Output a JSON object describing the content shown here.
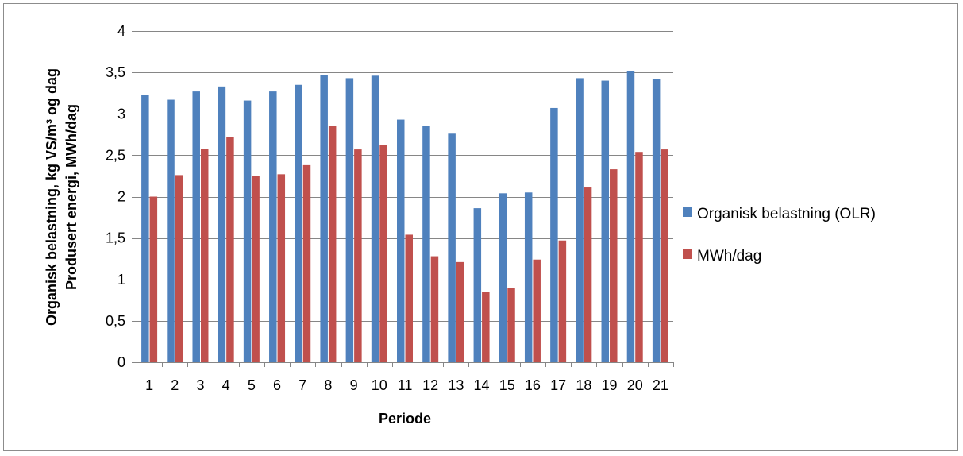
{
  "chart_data": {
    "type": "bar",
    "categories": [
      "1",
      "2",
      "3",
      "4",
      "5",
      "6",
      "7",
      "8",
      "9",
      "10",
      "11",
      "12",
      "13",
      "14",
      "15",
      "16",
      "17",
      "18",
      "19",
      "20",
      "21"
    ],
    "series": [
      {
        "name": "Organisk belastning (OLR)",
        "color": "#4F81BD",
        "values": [
          3.23,
          3.17,
          3.27,
          3.33,
          3.16,
          3.27,
          3.35,
          3.47,
          3.43,
          3.46,
          2.93,
          2.85,
          2.76,
          1.86,
          2.04,
          2.05,
          3.07,
          3.43,
          3.4,
          3.52,
          3.42
        ]
      },
      {
        "name": "MWh/dag",
        "color": "#C0504D",
        "values": [
          2.0,
          2.26,
          2.58,
          2.72,
          2.25,
          2.27,
          2.38,
          2.85,
          2.57,
          2.62,
          1.54,
          1.28,
          1.21,
          0.85,
          0.9,
          1.24,
          1.47,
          2.11,
          2.33,
          2.54,
          2.57
        ]
      }
    ],
    "ylim": [
      0,
      4
    ],
    "yticks": [
      0,
      0.5,
      1,
      1.5,
      2,
      2.5,
      3,
      3.5,
      4
    ],
    "ytick_labels": [
      "0",
      "0,5",
      "1",
      "1,5",
      "2",
      "2,5",
      "3",
      "3,5",
      "4"
    ],
    "xlabel": "Periode",
    "ylabel_line1": "Organisk belastning, kg VS/m³ og dag",
    "ylabel_line2": "Produsert energi, MWh/dag",
    "grid": true,
    "legend_position": "right"
  }
}
